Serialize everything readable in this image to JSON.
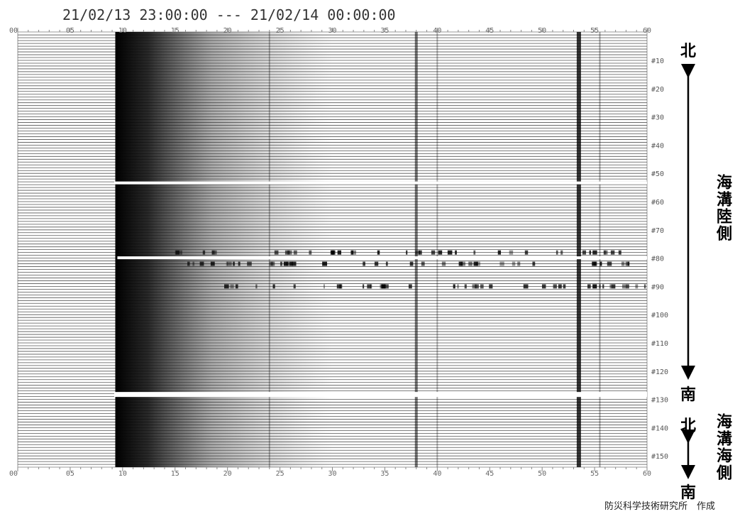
{
  "title": "21/02/13 23:00:00 --- 21/02/14 00:00:00",
  "time_ticks": [
    "00",
    "05",
    "10",
    "15",
    "20",
    "25",
    "30",
    "35",
    "40",
    "45",
    "50",
    "55",
    "60"
  ],
  "channel_labels": [
    "#10",
    "#20",
    "#30",
    "#40",
    "#50",
    "#60",
    "#70",
    "#80",
    "#90",
    "#100",
    "#110",
    "#120",
    "#130",
    "#140",
    "#150"
  ],
  "side_labels": {
    "landward": {
      "north": "北",
      "south": "南",
      "name": "海溝陸側"
    },
    "seaward": {
      "north": "北",
      "south": "南",
      "name": "海溝海側"
    }
  },
  "credit": "防災科学技術研究所　作成"
}
